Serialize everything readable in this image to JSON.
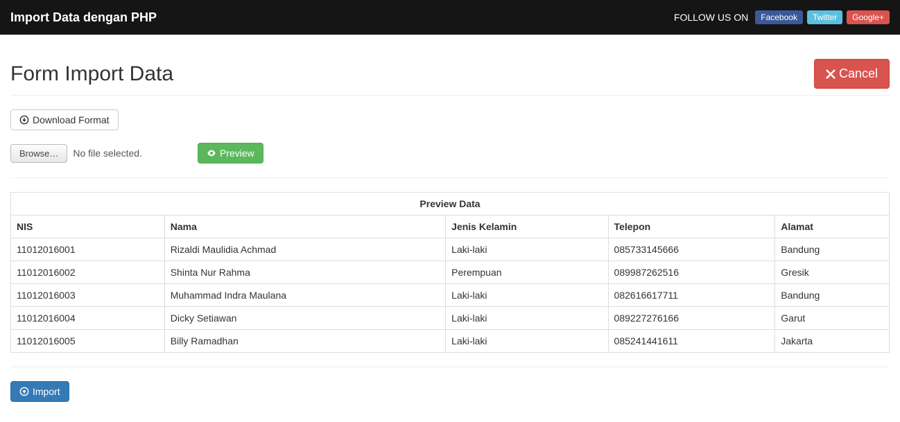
{
  "navbar": {
    "brand": "Import Data dengan PHP",
    "follow_label": "FOLLOW US ON",
    "social": {
      "facebook": "Facebook",
      "twitter": "Twitter",
      "googleplus": "Google+"
    }
  },
  "page": {
    "title": "Form Import Data",
    "cancel_label": "Cancel",
    "download_format_label": "Download Format",
    "file_browse_label": "Browse…",
    "file_status": "No file selected.",
    "preview_label": "Preview",
    "import_label": "Import"
  },
  "table": {
    "title": "Preview Data",
    "columns": [
      "NIS",
      "Nama",
      "Jenis Kelamin",
      "Telepon",
      "Alamat"
    ],
    "rows": [
      [
        "11012016001",
        "Rizaldi Maulidia Achmad",
        "Laki-laki",
        "085733145666",
        "Bandung"
      ],
      [
        "11012016002",
        "Shinta Nur Rahma",
        "Perempuan",
        "089987262516",
        "Gresik"
      ],
      [
        "11012016003",
        "Muhammad Indra Maulana",
        "Laki-laki",
        "082616617711",
        "Bandung"
      ],
      [
        "11012016004",
        "Dicky Setiawan",
        "Laki-laki",
        "089227276166",
        "Garut"
      ],
      [
        "11012016005",
        "Billy Ramadhan",
        "Laki-laki",
        "085241441611",
        "Jakarta"
      ]
    ]
  },
  "colors": {
    "navbar_bg": "#151515",
    "primary": "#337ab7",
    "success": "#5cb85c",
    "danger": "#d9534f",
    "facebook": "#3b5998",
    "twitter": "#5bc0de",
    "border": "#dddddd"
  }
}
